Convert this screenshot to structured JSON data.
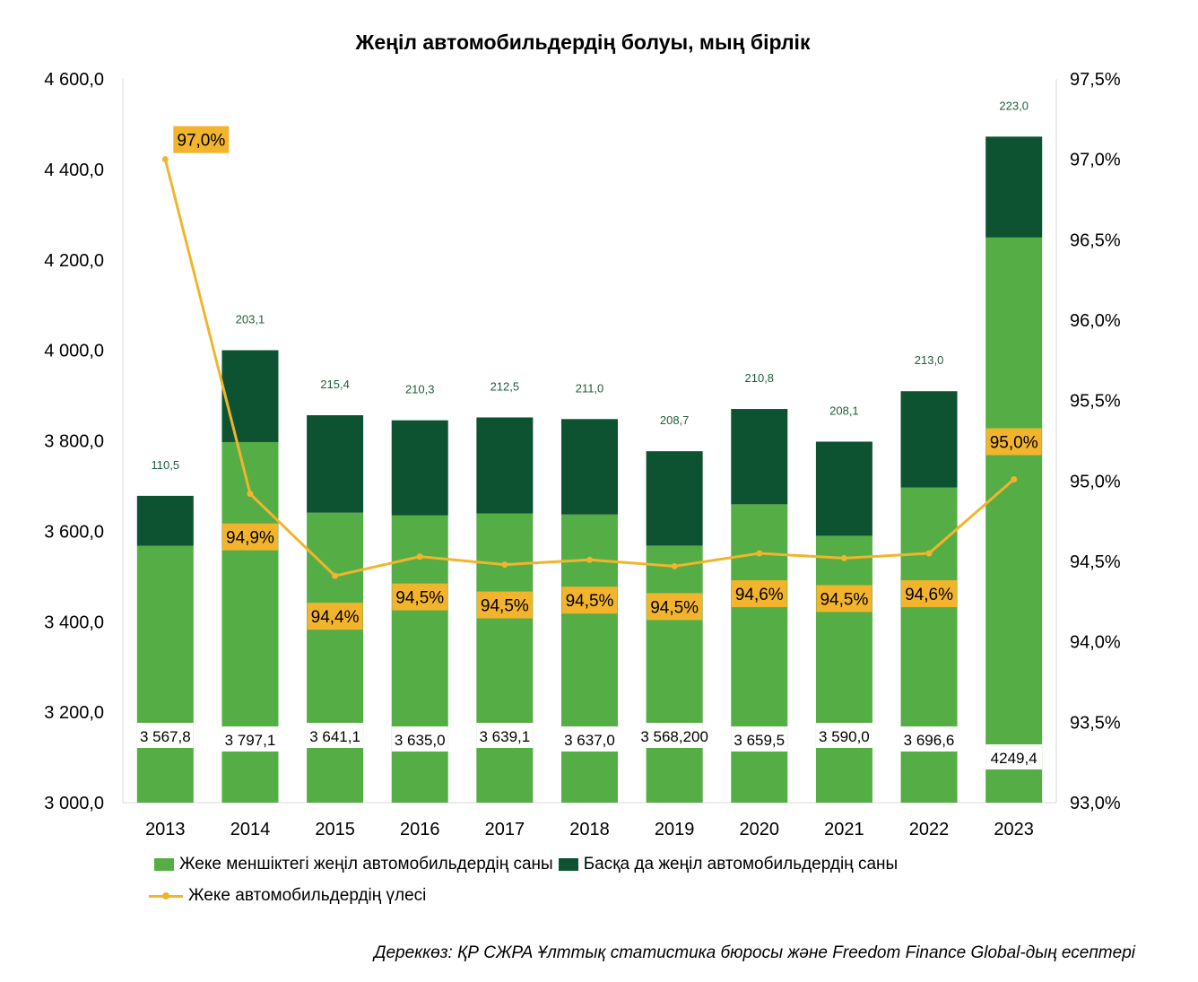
{
  "chart_data": {
    "type": "bar",
    "title": "Жеңіл автомобильдердің болуы, мың бірлік",
    "categories": [
      "2013",
      "2014",
      "2015",
      "2016",
      "2017",
      "2018",
      "2019",
      "2020",
      "2021",
      "2022",
      "2023"
    ],
    "ylim": [
      3000,
      4600
    ],
    "y_ticks": [
      "3 000,0",
      "3 200,0",
      "3 400,0",
      "3 600,0",
      "3 800,0",
      "4 000,0",
      "4 200,0",
      "4 400,0",
      "4 600,0"
    ],
    "y2lim": [
      93.0,
      97.5
    ],
    "y2_ticks": [
      "93,0%",
      "93,5%",
      "94,0%",
      "94,5%",
      "95,0%",
      "95,5%",
      "96,0%",
      "96,5%",
      "97,0%",
      "97,5%"
    ],
    "series": [
      {
        "name": "Жеке меншіктегі жеңіл автомобильдердің саны",
        "type": "bar",
        "color": "#55ad45",
        "values": [
          3567.8,
          3797.1,
          3641.1,
          3635.0,
          3639.1,
          3637.0,
          3568.2,
          3659.5,
          3590.0,
          3696.6,
          4249.4
        ],
        "labels": [
          "3 567,8",
          "3 797,1",
          "3 641,1",
          "3 635,0",
          "3 639,1",
          "3 637,0",
          "3 568,200",
          "3 659,5",
          "3 590,0",
          "3 696,6",
          "4249,4"
        ]
      },
      {
        "name": "Басқа да жеңіл автомобильдердің саны",
        "type": "bar",
        "color": "#0d5331",
        "values": [
          110.5,
          203.1,
          215.4,
          210.3,
          212.5,
          211.0,
          208.7,
          210.8,
          208.1,
          213.0,
          223.0
        ],
        "labels": [
          "110,5",
          "203,1",
          "215,4",
          "210,3",
          "212,5",
          "211,0",
          "208,7",
          "210,8",
          "208,1",
          "213,0",
          "223,0"
        ]
      },
      {
        "name": "Жеке автомобильдердің үлесі",
        "type": "line",
        "axis": "right",
        "color": "#f2b42d",
        "values": [
          97.0,
          94.92,
          94.41,
          94.53,
          94.48,
          94.51,
          94.47,
          94.55,
          94.52,
          94.55,
          95.01
        ],
        "labels": [
          "97,0%",
          "94,9%",
          "94,4%",
          "94,5%",
          "94,5%",
          "94,5%",
          "94,5%",
          "94,6%",
          "94,5%",
          "94,6%",
          "95,0%"
        ]
      }
    ],
    "legend_position": "bottom",
    "grid": false
  },
  "source_note": "Дереккөз: ҚР СЖРА Ұлттық статистика бюросы және Freedom Finance Global-дың есептері"
}
